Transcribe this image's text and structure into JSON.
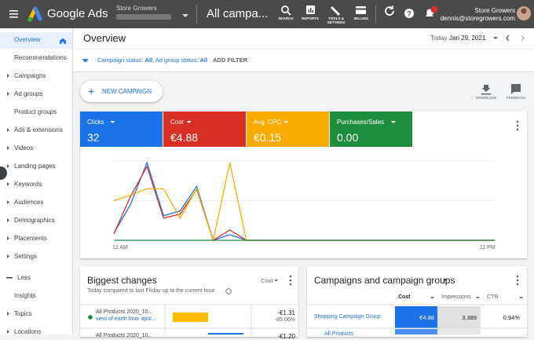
{
  "header": {
    "product": "Google Ads",
    "account_name": "Store Growers",
    "page_title": "All campa...",
    "actions": [
      "SEARCH",
      "REPORTS",
      "TOOLS & SETTINGS",
      "BILLING"
    ],
    "notification_count": "1",
    "user_name": "Store Growers",
    "user_email": "dennis@storegrowers.com"
  },
  "sidebar": {
    "items": [
      "Overview",
      "Recommendations",
      "Campaigns",
      "Ad groups",
      "Product groups",
      "Ads & extensions",
      "Videos",
      "Landing pages",
      "Keywords",
      "Audiences",
      "Demographics",
      "Placements",
      "Settings"
    ],
    "toggle": "Less",
    "more_items": [
      "Insights",
      "Topics",
      "Locations"
    ]
  },
  "overview": {
    "title": "Overview",
    "date_label": "Today",
    "date": "Jan 29, 2021",
    "filter_parts": [
      "Campaign status: ",
      "All",
      "; Ad group status: ",
      "All"
    ],
    "add_filter": "ADD FILTER",
    "new_campaign": "NEW CAMPAIGN",
    "download": "DOWNLOAD",
    "feedback": "FEEDBACK"
  },
  "metrics": [
    {
      "label": "Clicks",
      "value": "32",
      "color": "#1a73e8"
    },
    {
      "label": "Cost",
      "value": "€4.88",
      "color": "#d93025"
    },
    {
      "label": "Avg. CPC",
      "value": "€0.15",
      "color": "#f9ab00"
    },
    {
      "label": "Purchases/Sales",
      "value": "0.00",
      "color": "#1e8e3e"
    }
  ],
  "performance_chart": {
    "type": "line",
    "x_labels": [
      "12 AM",
      "11 PM"
    ],
    "ylim": [
      0,
      100
    ],
    "series": [
      {
        "color": "#1a73e8",
        "values": [
          9,
          45,
          98,
          31,
          37,
          68,
          0,
          7,
          0,
          0,
          0,
          0,
          0,
          0,
          0,
          0,
          0,
          0,
          0,
          0,
          0,
          0,
          0,
          0
        ]
      },
      {
        "color": "#d93025",
        "values": [
          8,
          55,
          93,
          28,
          33,
          64,
          0,
          13,
          0,
          0,
          0,
          0,
          0,
          0,
          0,
          0,
          0,
          0,
          0,
          0,
          0,
          0,
          0,
          0
        ]
      },
      {
        "color": "#f9ab00",
        "values": [
          50,
          57,
          65,
          65,
          28,
          65,
          0,
          98,
          0,
          0,
          0,
          0,
          0,
          0,
          0,
          0,
          0,
          0,
          0,
          0,
          0,
          0,
          0,
          0
        ]
      },
      {
        "color": "#1e8e3e",
        "values": [
          0,
          0,
          0,
          0,
          0,
          0,
          0,
          0,
          0,
          0,
          0,
          0,
          0,
          0,
          0,
          0,
          0,
          0,
          0,
          0,
          0,
          0,
          0,
          0
        ]
      }
    ]
  },
  "biggest_changes": {
    "title": "Biggest changes",
    "metric": "Cost",
    "subtitle": "Today compared to last Friday up to the current hour",
    "rows": [
      {
        "name": "All Products 2020_10...",
        "detail": "view of earth from apol...",
        "value": "-€1.31",
        "change": "-85.06%"
      },
      {
        "name": "All Products 2020_10...",
        "value": "-€1.20"
      }
    ]
  },
  "campaigns": {
    "title": "Campaigns and campaign groups",
    "columns": [
      "Cost",
      "Impressions",
      "CTR"
    ],
    "rows": [
      {
        "name": "Shopping Campaign Group",
        "cells": [
          "€4.88",
          "3,389",
          "0.94%"
        ]
      },
      {
        "name": "All Products"
      }
    ]
  }
}
